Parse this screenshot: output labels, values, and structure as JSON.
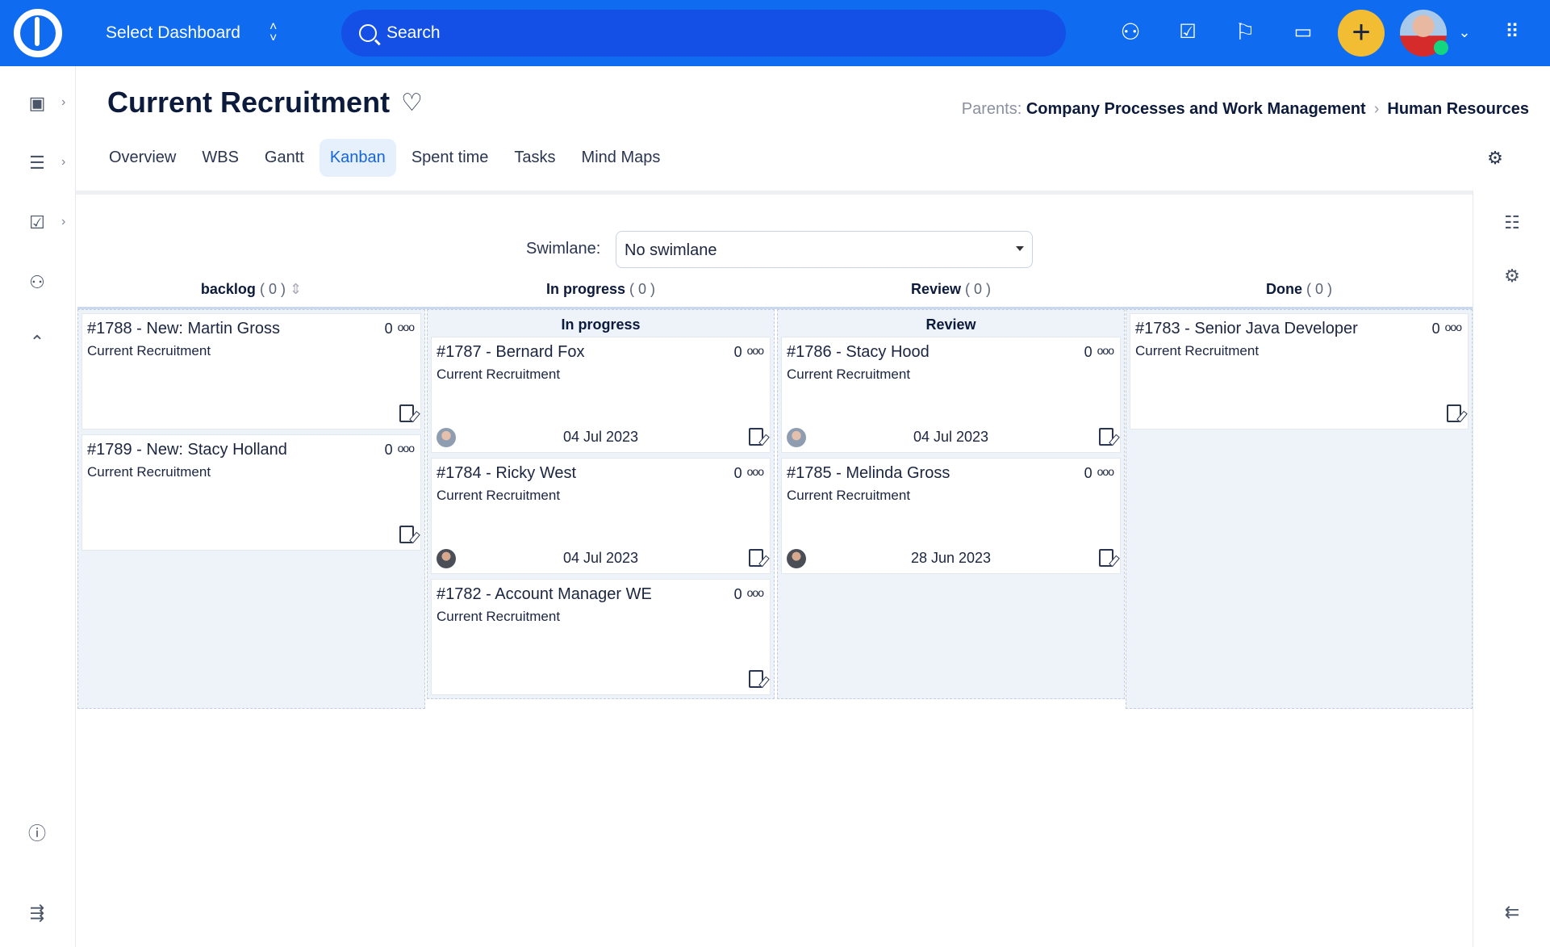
{
  "topbar": {
    "dashboard": "Select Dashboard",
    "search_placeholder": "Search",
    "icons": [
      "user-icon",
      "checklist-icon",
      "flag-icon",
      "calendar-icon",
      "plus-icon",
      "avatar",
      "apps-grid-icon"
    ],
    "accent": "#0f6cf0",
    "add_color": "#f2bd32"
  },
  "page": {
    "title": "Current Recruitment",
    "parents_label": "Parents:",
    "parents": [
      "Company Processes and Work Management",
      "Human Resources"
    ]
  },
  "tabs": [
    {
      "label": "Overview"
    },
    {
      "label": "WBS"
    },
    {
      "label": "Gantt"
    },
    {
      "label": "Kanban",
      "active": true
    },
    {
      "label": "Spent time"
    },
    {
      "label": "Tasks"
    },
    {
      "label": "Mind Maps"
    }
  ],
  "swimlane": {
    "label": "Swimlane:",
    "value": "No swimlane"
  },
  "columns": [
    {
      "name": "backlog",
      "count": "( 0 )",
      "sub": "",
      "cards": [
        {
          "title": "#1788 - New: Martin Gross",
          "project": "Current Recruitment",
          "num": "0"
        },
        {
          "title": "#1789 - New: Stacy Holland",
          "project": "Current Recruitment",
          "num": "0"
        }
      ]
    },
    {
      "name": "In progress",
      "count": "( 0 )",
      "sub": "In progress",
      "cards": [
        {
          "title": "#1787 - Bernard Fox",
          "project": "Current Recruitment",
          "num": "0",
          "date": "04 Jul 2023"
        },
        {
          "title": "#1784 - Ricky West",
          "project": "Current Recruitment",
          "num": "0",
          "date": "04 Jul 2023"
        },
        {
          "title": "#1782 - Account Manager WE",
          "project": "Current Recruitment",
          "num": "0"
        }
      ]
    },
    {
      "name": "Review",
      "count": "( 0 )",
      "sub": "Review",
      "cards": [
        {
          "title": "#1786 - Stacy Hood",
          "project": "Current Recruitment",
          "num": "0",
          "date": "04 Jul 2023"
        },
        {
          "title": "#1785 - Melinda Gross",
          "project": "Current Recruitment",
          "num": "0",
          "date": "28 Jun 2023"
        }
      ]
    },
    {
      "name": "Done",
      "count": "( 0 )",
      "sub": "",
      "cards": [
        {
          "title": "#1783 - Senior Java Developer",
          "project": "Current Recruitment",
          "num": "0"
        }
      ]
    }
  ]
}
